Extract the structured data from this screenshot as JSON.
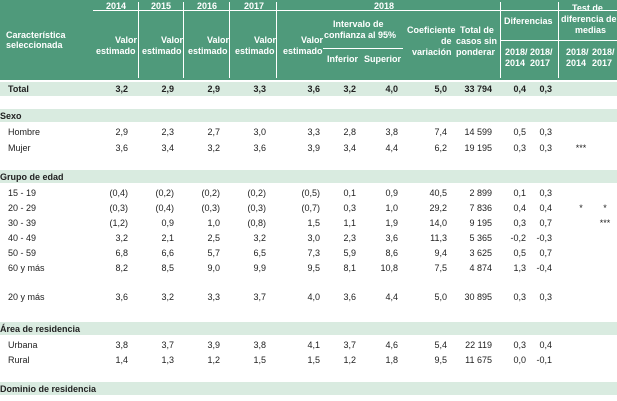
{
  "header": {
    "col_label": "Característica seleccionada",
    "years": [
      "2014",
      "2015",
      "2016",
      "2017",
      "2018"
    ],
    "valor": "Valor",
    "estimado": "estimado",
    "intervalo_line1": "Intervalo de",
    "intervalo_line2": "confianza al 95%",
    "inferior": "Inferior",
    "superior": "Superior",
    "coef_line1": "Coeficiente",
    "coef_line2": "de",
    "coef_line3": "variación",
    "total_line1": "Total de",
    "total_line2": "casos sin",
    "total_line3": "ponderar",
    "diferencias": "Diferencias",
    "test_line1": "Test de",
    "test_line2": "diferencia de",
    "test_line3": "medias",
    "d1": "2018/",
    "d1b": "2014",
    "d2": "2018/",
    "d2b": "2017"
  },
  "total_row": {
    "label": "Total",
    "v": [
      "3,2",
      "2,9",
      "2,9",
      "3,3",
      "3,6",
      "3,2",
      "4,0",
      "5,0",
      "33 794",
      "0,4",
      "0,3",
      "",
      ""
    ]
  },
  "sections": [
    {
      "title": "Sexo",
      "rows": [
        {
          "label": "Hombre",
          "v": [
            "2,9",
            "2,3",
            "2,7",
            "3,0",
            "3,3",
            "2,8",
            "3,8",
            "7,4",
            "14 599",
            "0,5",
            "0,3",
            "",
            ""
          ]
        },
        {
          "label": "Mujer",
          "v": [
            "3,6",
            "3,4",
            "3,2",
            "3,6",
            "3,9",
            "3,4",
            "4,4",
            "6,2",
            "19 195",
            "0,3",
            "0,3",
            "***",
            ""
          ]
        }
      ]
    },
    {
      "title": "Grupo de edad",
      "rows": [
        {
          "label": "15 - 19",
          "v": [
            "(0,4)",
            "(0,2)",
            "(0,2)",
            "(0,2)",
            "(0,5)",
            "0,1",
            "0,9",
            "40,5",
            "2 899",
            "0,1",
            "0,3",
            "",
            ""
          ]
        },
        {
          "label": "20 - 29",
          "v": [
            "(0,3)",
            "(0,4)",
            "(0,3)",
            "(0,3)",
            "(0,7)",
            "0,3",
            "1,0",
            "29,2",
            "7 836",
            "0,4",
            "0,4",
            "*",
            "*"
          ]
        },
        {
          "label": "30 - 39",
          "v": [
            "(1,2)",
            "0,9",
            "1,0",
            "(0,8)",
            "1,5",
            "1,1",
            "1,9",
            "14,0",
            "9 195",
            "0,3",
            "0,7",
            "",
            "***"
          ]
        },
        {
          "label": "40 - 49",
          "v": [
            "3,2",
            "2,1",
            "2,5",
            "3,2",
            "3,0",
            "2,3",
            "3,6",
            "11,3",
            "5 365",
            "-0,2",
            "-0,3",
            "",
            ""
          ]
        },
        {
          "label": "50 - 59",
          "v": [
            "6,8",
            "6,6",
            "5,7",
            "6,5",
            "7,3",
            "5,9",
            "8,6",
            "9,4",
            "3 625",
            "0,5",
            "0,7",
            "",
            ""
          ]
        },
        {
          "label": "60 y más",
          "v": [
            "8,2",
            "8,5",
            "9,0",
            "9,9",
            "9,5",
            "8,1",
            "10,8",
            "7,5",
            "4 874",
            "1,3",
            "-0,4",
            "",
            ""
          ]
        },
        {
          "label": "20 y más",
          "v": [
            "3,6",
            "3,2",
            "3,3",
            "3,7",
            "4,0",
            "3,6",
            "4,4",
            "5,0",
            "30 895",
            "0,3",
            "0,3",
            "",
            ""
          ]
        }
      ]
    },
    {
      "title": "Área de residencia",
      "rows": [
        {
          "label": "Urbana",
          "v": [
            "3,8",
            "3,7",
            "3,9",
            "3,8",
            "4,1",
            "3,7",
            "4,6",
            "5,4",
            "22 119",
            "0,3",
            "0,4",
            "",
            ""
          ]
        },
        {
          "label": "Rural",
          "v": [
            "1,4",
            "1,3",
            "1,2",
            "1,5",
            "1,5",
            "1,2",
            "1,8",
            "9,5",
            "11 675",
            "0,0",
            "-0,1",
            "",
            ""
          ]
        }
      ]
    },
    {
      "title": "Dominio de residencia",
      "rows": []
    }
  ]
}
